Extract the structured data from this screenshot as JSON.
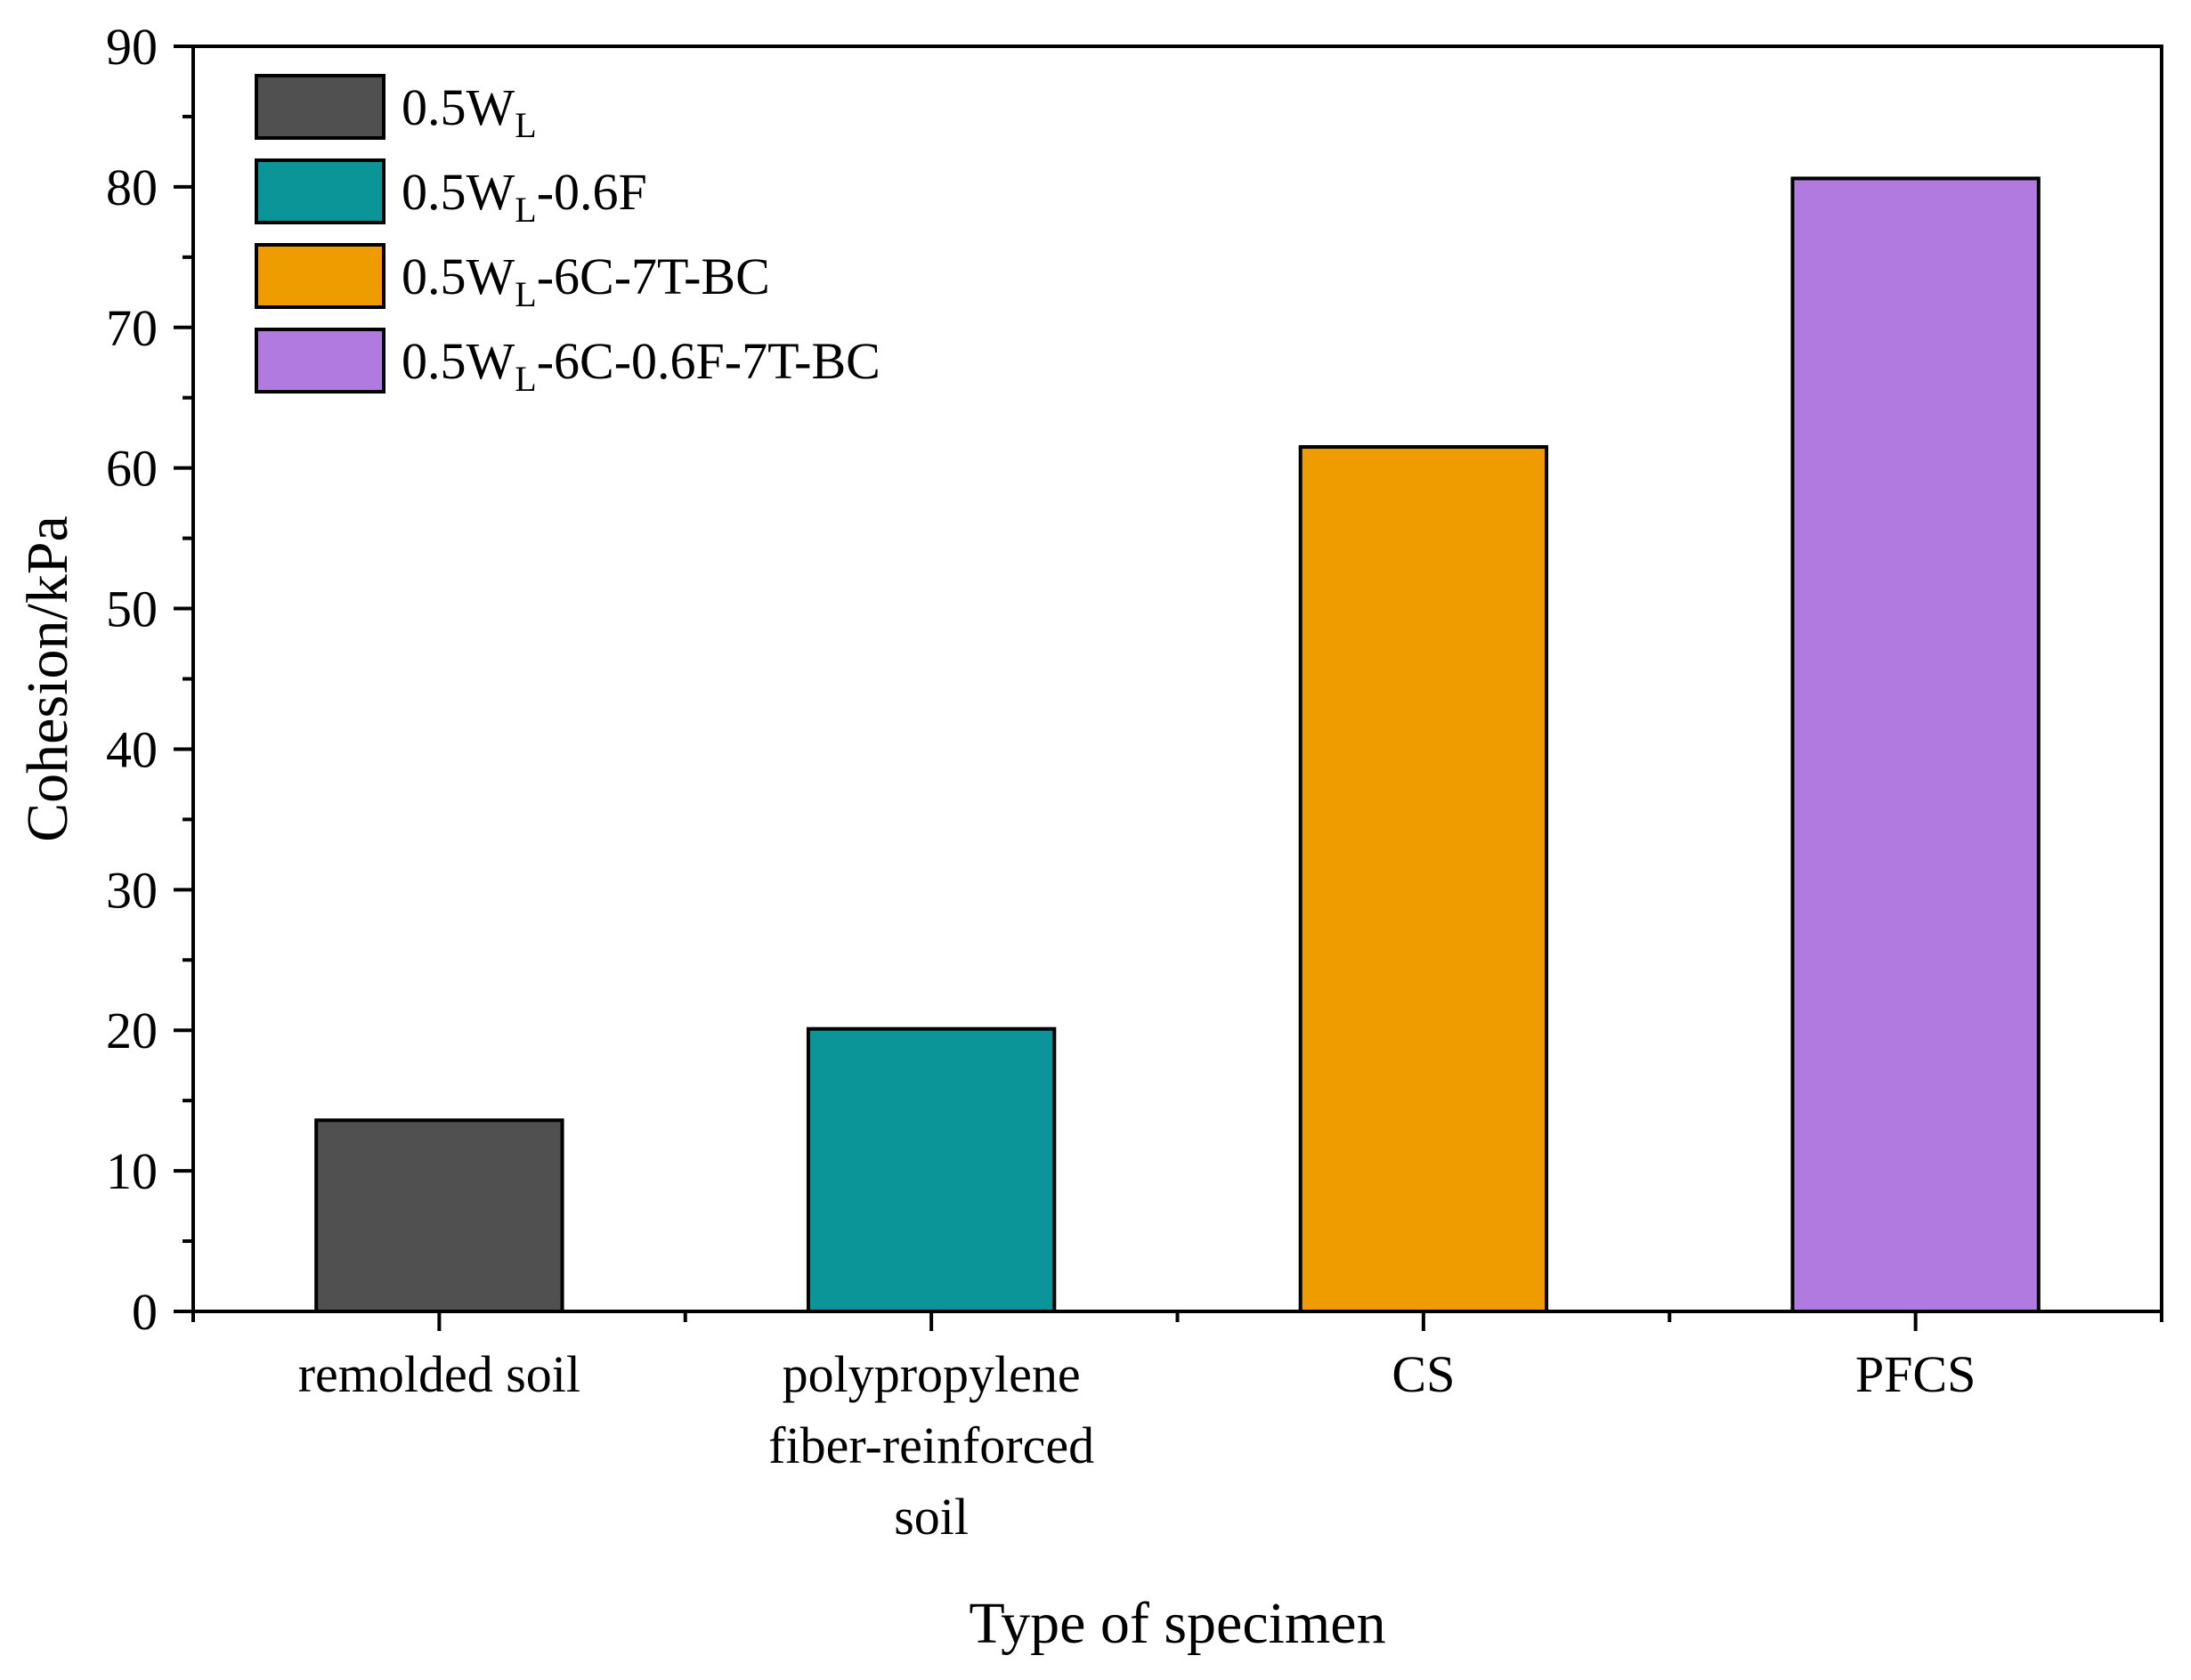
{
  "chart_data": {
    "type": "bar",
    "title": "",
    "xlabel": "Type of specimen",
    "ylabel": "Cohesion/kPa",
    "ylim": [
      0,
      90
    ],
    "yticks": [
      0,
      10,
      20,
      30,
      40,
      50,
      60,
      70,
      80,
      90
    ],
    "categories": [
      {
        "lines": [
          "remolded soil"
        ]
      },
      {
        "lines": [
          "polypropylene",
          "fiber-reinforced",
          "soil"
        ]
      },
      {
        "lines": [
          "CS"
        ]
      },
      {
        "lines": [
          "PFCS"
        ]
      }
    ],
    "values": [
      13.6,
      20.1,
      61.5,
      80.6
    ],
    "colors": [
      "#505050",
      "#0b9598",
      "#ef9c00",
      "#b07ae0"
    ],
    "legend_position": "top-left",
    "legend": [
      {
        "main": "0.5W",
        "sub": "L",
        "rest": ""
      },
      {
        "main": "0.5W",
        "sub": "L",
        "rest": "-0.6F"
      },
      {
        "main": "0.5W",
        "sub": "L",
        "rest": "-6C-7T-BC"
      },
      {
        "main": "0.5W",
        "sub": "L",
        "rest": "-6C-0.6F-7T-BC"
      }
    ]
  }
}
